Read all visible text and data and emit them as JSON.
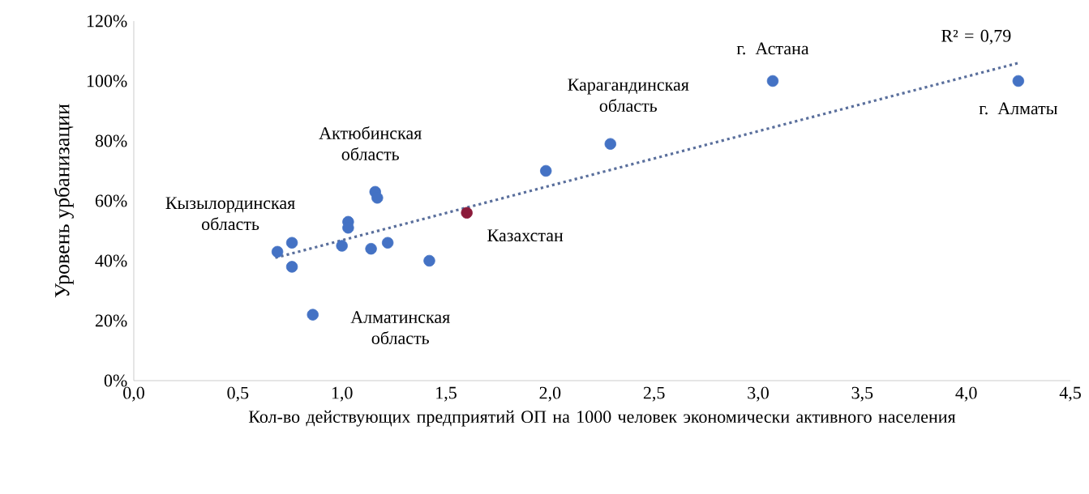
{
  "chart_data": {
    "type": "scatter",
    "xlabel": "Кол-во действующих предприятий ОП на 1000 человек экономически активного населения",
    "ylabel": "Уровень урбанизации",
    "xlim": [
      0,
      4.5
    ],
    "xticks": [
      {
        "value": 0,
        "label": "0,0"
      },
      {
        "value": 0.5,
        "label": "0,5"
      },
      {
        "value": 1,
        "label": "1,0"
      },
      {
        "value": 1.5,
        "label": "1,5"
      },
      {
        "value": 2,
        "label": "2,0"
      },
      {
        "value": 2.5,
        "label": "2,5"
      },
      {
        "value": 3,
        "label": "3,0"
      },
      {
        "value": 3.5,
        "label": "3,5"
      },
      {
        "value": 4,
        "label": "4,0"
      },
      {
        "value": 4.5,
        "label": "4,5"
      }
    ],
    "ylim": [
      0,
      120
    ],
    "yticks": [
      {
        "value": 0,
        "label": "0%"
      },
      {
        "value": 20,
        "label": "20%"
      },
      {
        "value": 40,
        "label": "40%"
      },
      {
        "value": 60,
        "label": "60%"
      },
      {
        "value": 80,
        "label": "80%"
      },
      {
        "value": 100,
        "label": "100%"
      },
      {
        "value": 120,
        "label": "120%"
      }
    ],
    "marker": "circle",
    "series": [
      {
        "color": "#4472c4",
        "x": [
          0.69,
          0.76,
          0.76,
          1.16,
          1.17,
          1.03,
          1.03,
          1.0,
          1.14,
          1.22,
          1.42,
          0.86,
          1.98,
          2.29,
          3.07,
          4.25
        ],
        "values": [
          43,
          46,
          38,
          63,
          61,
          53,
          51,
          45,
          44,
          46,
          40,
          22,
          70,
          79,
          100,
          100
        ]
      },
      {
        "color": "#8b1a3a",
        "x": [
          1.6
        ],
        "values": [
          56
        ]
      },
      {
        "type": "line",
        "color": "#5a6f9c",
        "line_style": "dotted",
        "marker": "none",
        "x": [
          0.68,
          4.25
        ],
        "values": [
          41,
          106
        ]
      }
    ],
    "annotations": [
      {
        "text": "г. Астана",
        "x": 3.07,
        "y": 100
      },
      {
        "text": "Карагандинская область",
        "x": 2.29,
        "y": 79
      },
      {
        "text": "г. Алматы",
        "x": 4.25,
        "y": 100
      },
      {
        "text": "Актюбинская область",
        "x": 1.16,
        "y": 63
      },
      {
        "text": "Кызылординская область",
        "x": 0.76,
        "y": 46
      },
      {
        "text": "Казахстан",
        "x": 1.6,
        "y": 56
      },
      {
        "text": "Алматинская область",
        "x": 0.86,
        "y": 22
      },
      {
        "text": "R² = 0,79",
        "x": 4.25,
        "y": 106
      }
    ]
  }
}
